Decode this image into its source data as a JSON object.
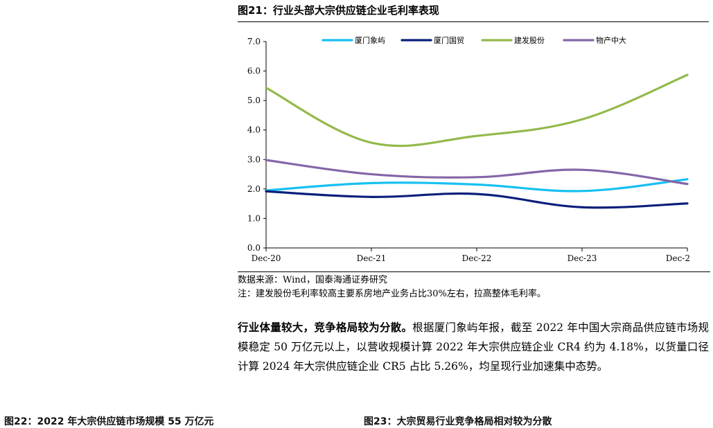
{
  "figure": {
    "title": "图21：行业头部大宗供应链企业毛利率表现",
    "source": "数据来源：Wind，国泰海通证券研究",
    "note": "注：建发股份毛利率较高主要系房地产业务占比30%左右，拉高整体毛利率。"
  },
  "chart_data": {
    "type": "line",
    "x": [
      "Dec-20",
      "Dec-21",
      "Dec-22",
      "Dec-23",
      "Dec-2"
    ],
    "ylim": [
      0,
      7
    ],
    "yticks": [
      "0.0",
      "1.0",
      "2.0",
      "3.0",
      "4.0",
      "5.0",
      "6.0",
      "7.0"
    ],
    "legend_position": "top",
    "grid": false,
    "series": [
      {
        "name": "厦门象屿",
        "color": "#17c0f2",
        "values": [
          1.95,
          2.2,
          2.15,
          1.93,
          2.33
        ]
      },
      {
        "name": "厦门国贸",
        "color": "#0b1f7a",
        "values": [
          1.92,
          1.73,
          1.83,
          1.38,
          1.51
        ]
      },
      {
        "name": "建发股份",
        "color": "#93b94b",
        "values": [
          5.43,
          3.57,
          3.8,
          4.36,
          5.87
        ]
      },
      {
        "name": "物产中大",
        "color": "#8566a7",
        "values": [
          2.98,
          2.5,
          2.4,
          2.65,
          2.17
        ]
      }
    ]
  },
  "paragraph": {
    "lead": "行业体量较大，竞争格局较为分散。",
    "body": "根据厦门象屿年报，截至 2022 年中国大宗商品供应链市场规模稳定 50 万亿元以上，以营收规模计算 2022 年大宗供应链企业 CR4 约为 4.18%，以货量口径计算 2024 年大宗供应链企业 CR5 占比 5.26%，均呈现行业加速集中态势。"
  },
  "cutoff": {
    "left": "图22：2022 年大宗供应链市场规模 55 万亿元",
    "right": "图23：大宗贸易行业竞争格局相对较为分散"
  }
}
